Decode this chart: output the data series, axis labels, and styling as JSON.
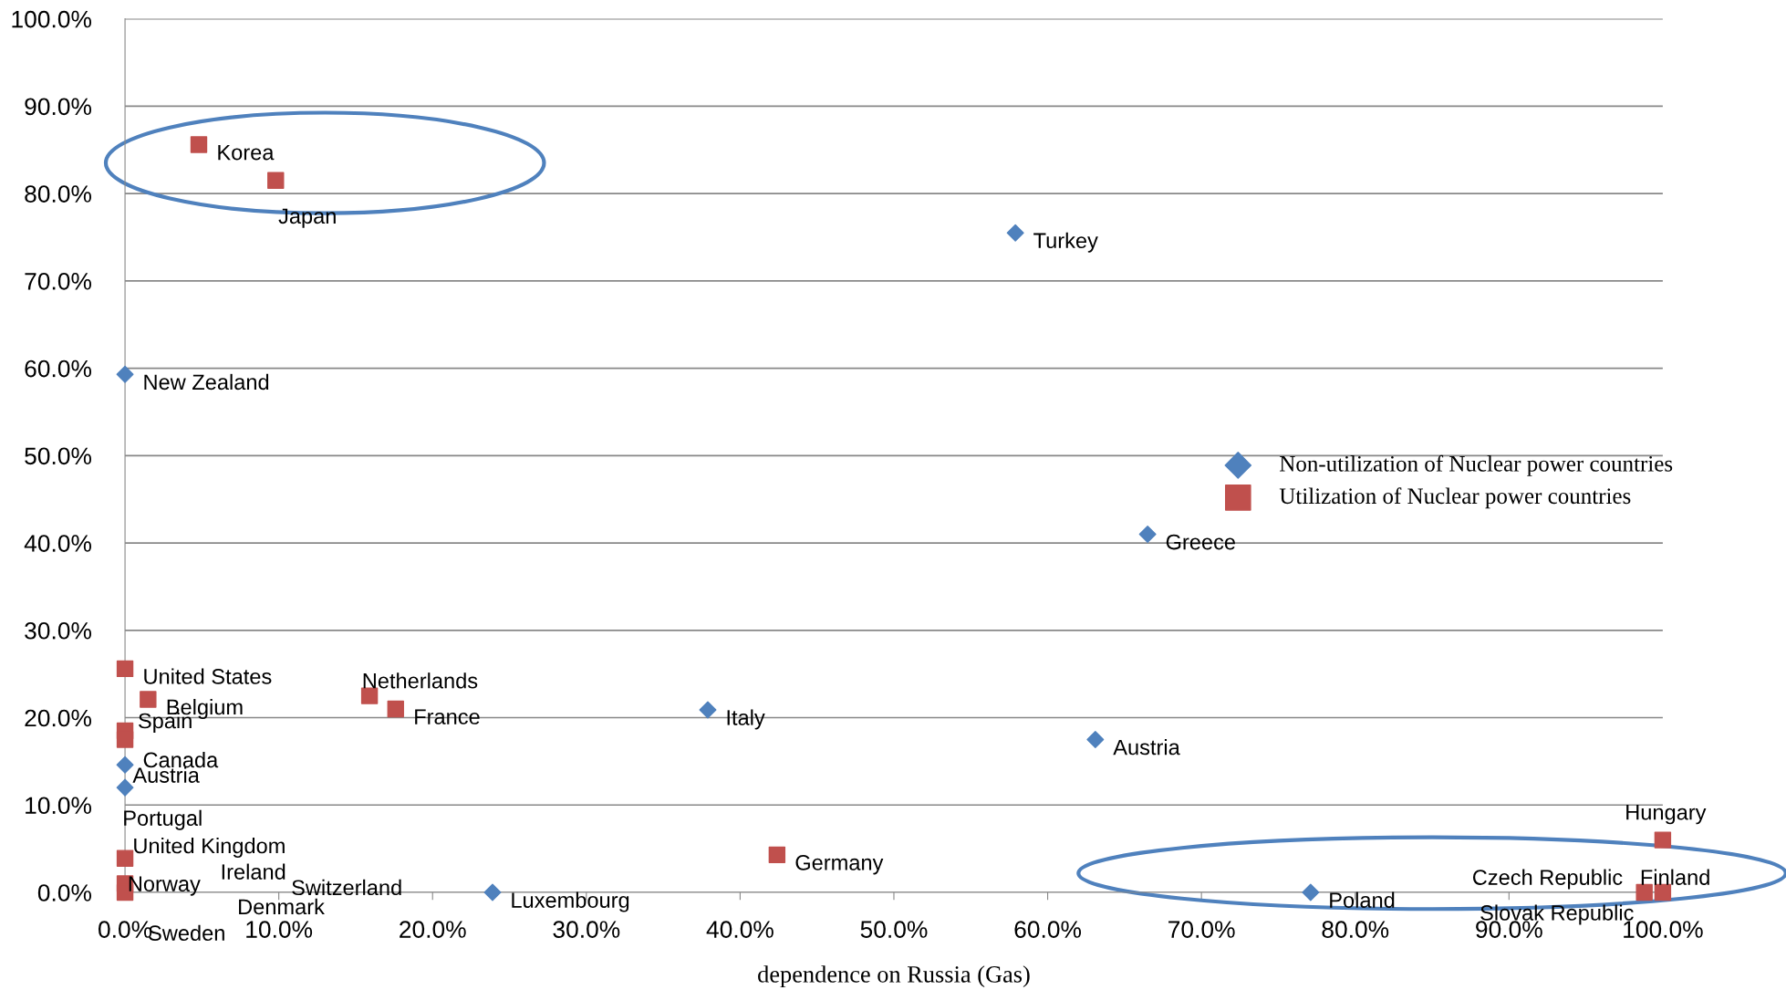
{
  "chart_data": {
    "type": "scatter",
    "xlabel": "dependence on Russia (Gas)",
    "xlim": [
      0,
      100
    ],
    "ylim": [
      0,
      100
    ],
    "xticks": [
      {
        "value": 0,
        "label": "0.0%"
      },
      {
        "value": 10,
        "label": "10.0%"
      },
      {
        "value": 20,
        "label": "20.0%"
      },
      {
        "value": 30,
        "label": "30.0%"
      },
      {
        "value": 40,
        "label": "40.0%"
      },
      {
        "value": 50,
        "label": "50.0%"
      },
      {
        "value": 60,
        "label": "60.0%"
      },
      {
        "value": 70,
        "label": "70.0%"
      },
      {
        "value": 80,
        "label": "80.0%"
      },
      {
        "value": 90,
        "label": "90.0%"
      },
      {
        "value": 100,
        "label": "100.0%"
      }
    ],
    "yticks": [
      {
        "value": 0,
        "label": "0.0%"
      },
      {
        "value": 10,
        "label": "10.0%"
      },
      {
        "value": 20,
        "label": "20.0%"
      },
      {
        "value": 30,
        "label": "30.0%"
      },
      {
        "value": 40,
        "label": "40.0%"
      },
      {
        "value": 50,
        "label": "50.0%"
      },
      {
        "value": 60,
        "label": "60.0%"
      },
      {
        "value": 70,
        "label": "70.0%"
      },
      {
        "value": 80,
        "label": "80.0%"
      },
      {
        "value": 90,
        "label": "90.0%"
      },
      {
        "value": 100,
        "label": "100.0%"
      }
    ],
    "grid": "y",
    "legend": "right",
    "series": [
      {
        "name": "Non-utilization of Nuclear power countries",
        "color": "#4f81bd",
        "marker": "diamond",
        "x": [
          57.9,
          0,
          66.5,
          37.9,
          63.1,
          0,
          0,
          23.9,
          77.1
        ],
        "values": [
          75.5,
          59.3,
          41.0,
          20.9,
          17.5,
          14.6,
          12.0,
          0,
          0
        ]
      },
      {
        "name": "Utilization of Nuclear power countries",
        "color": "#c0504d",
        "marker": "square",
        "x": [
          4.8,
          9.8,
          0,
          1.5,
          15.9,
          17.6,
          0,
          0,
          0,
          0,
          0,
          42.4,
          100,
          100,
          98.8
        ],
        "values": [
          85.6,
          81.5,
          25.6,
          22.1,
          22.5,
          21.0,
          18.5,
          17.5,
          3.9,
          1.0,
          0,
          4.3,
          6.0,
          0,
          0
        ]
      }
    ],
    "annotations": [
      {
        "text": "Turkey",
        "x": 57.9,
        "y": 75.5
      },
      {
        "text": "New Zealand",
        "x": 0,
        "y": 59.3
      },
      {
        "text": "Greece",
        "x": 66.5,
        "y": 41.0
      },
      {
        "text": "Italy",
        "x": 37.9,
        "y": 20.9
      },
      {
        "text": "Austria",
        "x": 63.1,
        "y": 17.5
      },
      {
        "text": "Austria",
        "x": 0,
        "y": 14.6
      },
      {
        "text": "Portugal",
        "x": 0,
        "y": 12.0
      },
      {
        "text": "Luxembourg",
        "x": 23.9,
        "y": 0
      },
      {
        "text": "Poland",
        "x": 77.1,
        "y": 0
      },
      "Ireland",
      "Denmark",
      {
        "text": "Korea",
        "x": 4.8,
        "y": 85.6
      },
      {
        "text": "Japan",
        "x": 9.8,
        "y": 81.5
      },
      {
        "text": "United States",
        "x": 0,
        "y": 25.6
      },
      {
        "text": "Belgium",
        "x": 1.5,
        "y": 22.1
      },
      {
        "text": "Netherlands",
        "x": 15.9,
        "y": 22.5
      },
      {
        "text": "France",
        "x": 17.6,
        "y": 21.0
      },
      {
        "text": "Spain",
        "x": 0,
        "y": 18.5
      },
      {
        "text": "Canada",
        "x": 0,
        "y": 17.5
      },
      {
        "text": "United Kingdom",
        "x": 0,
        "y": 3.9
      },
      {
        "text": "Norway",
        "x": 0,
        "y": 1.0
      },
      {
        "text": "Sweden",
        "x": 0,
        "y": 0
      },
      "Switzerland",
      {
        "text": "Germany",
        "x": 42.4,
        "y": 4.3
      },
      {
        "text": "Hungary",
        "x": 100,
        "y": 6.0
      },
      {
        "text": "Finland",
        "x": 100,
        "y": 0
      },
      {
        "text": "Slovak Republic",
        "x": 98.8,
        "y": 0
      },
      {
        "text": "Czech Republic",
        "x": 98.8,
        "y": 0
      }
    ]
  }
}
